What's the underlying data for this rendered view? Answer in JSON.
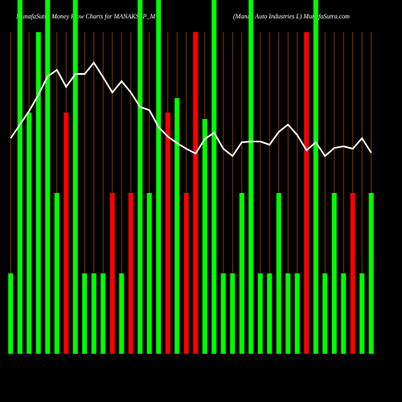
{
  "chart_data": {
    "type": "bar",
    "title": "MunafaSutra  Money Flow  Charts for MANAKSEP_M",
    "subtitle": "(Manap Auto  Industries L) MunafaSutra.com",
    "categories": [
      null,
      null,
      null,
      null,
      null,
      null,
      null,
      null,
      null,
      null,
      null,
      null,
      null,
      null,
      null,
      null,
      null,
      null,
      null,
      null,
      null,
      null,
      null,
      null,
      null,
      null,
      null,
      null,
      null,
      null,
      null,
      null,
      null,
      null,
      null,
      null,
      null,
      null,
      null,
      null
    ],
    "values": [
      1,
      4.4,
      3,
      4,
      4.4,
      2,
      3,
      4.4,
      1,
      1,
      1,
      2,
      1,
      2,
      4.4,
      2,
      4.4,
      3,
      3.18,
      2,
      4,
      2.92,
      4.4,
      1,
      1,
      2,
      4.4,
      1,
      1,
      2,
      1,
      1,
      4,
      4.4,
      1,
      2,
      1,
      2,
      1,
      2
    ],
    "colors": [
      "#00ff00",
      "#00ff00",
      "#00ff00",
      "#00ff00",
      "#00ff00",
      "#00ff00",
      "#ff0000",
      "#00ff00",
      "#00ff00",
      "#00ff00",
      "#00ff00",
      "#ff0000",
      "#00ff00",
      "#ff0000",
      "#00ff00",
      "#00ff00",
      "#00ff00",
      "#ff0000",
      "#00ff00",
      "#ff0000",
      "#ff0000",
      "#00ff00",
      "#00ff00",
      "#00ff00",
      "#00ff00",
      "#00ff00",
      "#00ff00",
      "#00ff00",
      "#00ff00",
      "#00ff00",
      "#00ff00",
      "#00ff00",
      "#ff0000",
      "#00ff00",
      "#00ff00",
      "#00ff00",
      "#00ff00",
      "#ff0000",
      "#00ff00",
      "#00ff00"
    ],
    "line": {
      "color": "#ffffff",
      "values": [
        2.68,
        2.85,
        3.02,
        3.22,
        3.45,
        3.53,
        3.32,
        3.48,
        3.48,
        3.62,
        3.44,
        3.25,
        3.39,
        3.25,
        3.07,
        3.03,
        2.82,
        2.7,
        2.62,
        2.55,
        2.49,
        2.67,
        2.75,
        2.55,
        2.46,
        2.63,
        2.64,
        2.64,
        2.6,
        2.76,
        2.85,
        2.72,
        2.53,
        2.63,
        2.46,
        2.56,
        2.58,
        2.55,
        2.68,
        2.5
      ]
    },
    "ylim": [
      0,
      4.4
    ]
  }
}
